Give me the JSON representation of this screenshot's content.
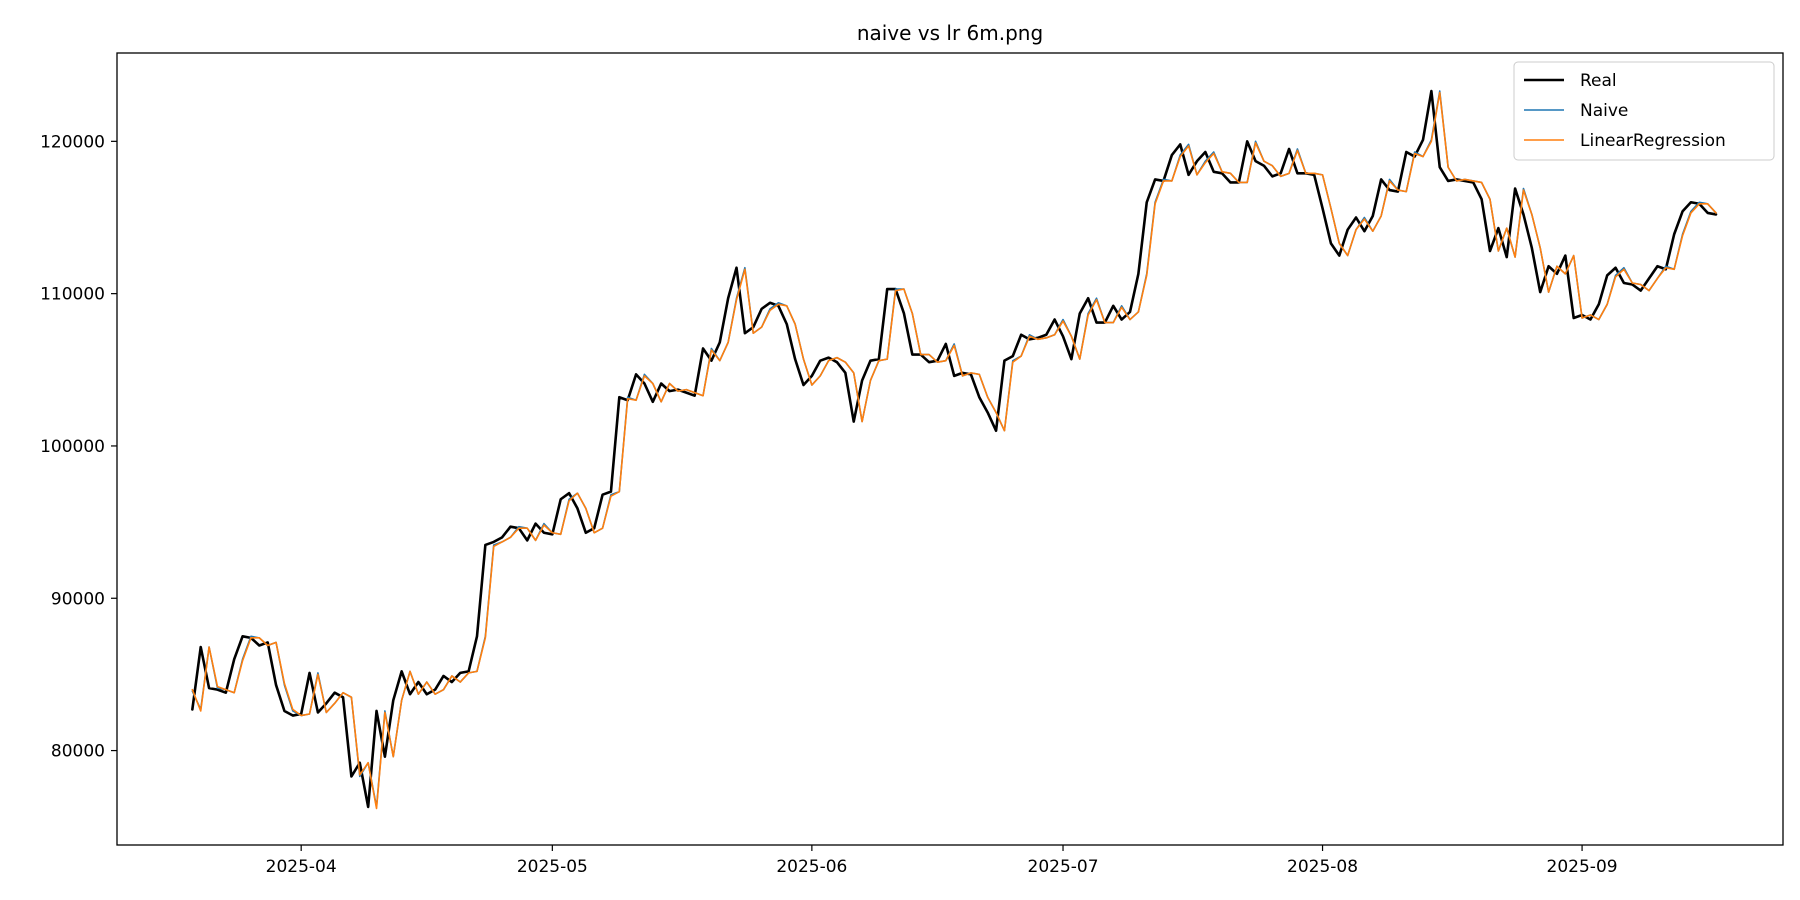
{
  "chart_data": {
    "type": "line",
    "title": "naive vs lr 6m.png",
    "xlabel": "",
    "ylabel": "",
    "x_start": "2025-03-19",
    "x_ticks": [
      "2025-04",
      "2025-05",
      "2025-06",
      "2025-07",
      "2025-08",
      "2025-09"
    ],
    "y_ticks": [
      80000,
      90000,
      100000,
      110000,
      120000
    ],
    "xlim": [
      "2025-03-10",
      "2025-09-25"
    ],
    "ylim": [
      73800,
      125800
    ],
    "grid": false,
    "legend_position": "top-right",
    "series": [
      {
        "name": "Real",
        "color": "#000000",
        "values": [
          82700,
          86800,
          84100,
          84000,
          83800,
          86000,
          87500,
          87400,
          86900,
          87100,
          84300,
          82600,
          82300,
          82400,
          85100,
          82500,
          83100,
          83800,
          83500,
          78300,
          79200,
          76300,
          82600,
          79600,
          83300,
          85200,
          83700,
          84500,
          83700,
          84000,
          84900,
          84500,
          85100,
          85200,
          87500,
          93500,
          93700,
          94000,
          94700,
          94600,
          93800,
          94900,
          94300,
          94200,
          96500,
          96900,
          95900,
          94300,
          94600,
          96800,
          97000,
          103200,
          103000,
          104700,
          104100,
          102900,
          104100,
          103600,
          103700,
          103500,
          103300,
          106400,
          105600,
          106800,
          109700,
          111700,
          107400,
          107800,
          109000,
          109400,
          109200,
          108000,
          105700,
          104000,
          104600,
          105600,
          105800,
          105500,
          104800,
          101600,
          104300,
          105600,
          105700,
          110300,
          110300,
          108700,
          106000,
          106000,
          105500,
          105600,
          106700,
          104600,
          104800,
          104700,
          103200,
          102200,
          101000,
          105600,
          105900,
          107300,
          107000,
          107100,
          107300,
          108300,
          107200,
          105700,
          108700,
          109700,
          108100,
          108100,
          109200,
          108300,
          108800,
          111300,
          116000,
          117500,
          117400,
          119100,
          119800,
          117800,
          118700,
          119300,
          118000,
          117900,
          117300,
          117300,
          120000,
          118700,
          118400,
          117700,
          117900,
          119500,
          117900,
          117900,
          117800,
          115600,
          113300,
          112500,
          114200,
          115000,
          114100,
          115100,
          117500,
          116800,
          116700,
          119300,
          119000,
          120100,
          123300,
          118300,
          117400,
          117500,
          117400,
          117300,
          116200,
          112800,
          114300,
          112400,
          116900,
          115200,
          113000,
          110100,
          111800,
          111300,
          112500,
          108400,
          108600,
          108300,
          109300,
          111200,
          111700,
          110700,
          110600,
          110200,
          111000,
          111800,
          111600,
          113900,
          115400,
          116000,
          115900,
          115300,
          115200
        ]
      },
      {
        "name": "Naive",
        "color": "#1f77b4",
        "values": [
          83900,
          82700,
          86800,
          84100,
          84000,
          83800,
          86000,
          87500,
          87400,
          86900,
          87100,
          84300,
          82600,
          82300,
          82400,
          85100,
          82500,
          83100,
          83800,
          83500,
          78300,
          79200,
          76300,
          82600,
          79600,
          83300,
          85200,
          83700,
          84500,
          83700,
          84000,
          84900,
          84500,
          85100,
          85200,
          87500,
          93500,
          93700,
          94000,
          94700,
          94600,
          93800,
          94900,
          94300,
          94200,
          96500,
          96900,
          95900,
          94300,
          94600,
          96800,
          97000,
          103200,
          103000,
          104700,
          104100,
          102900,
          104100,
          103600,
          103700,
          103500,
          103300,
          106400,
          105600,
          106800,
          109700,
          111700,
          107400,
          107800,
          109000,
          109400,
          109200,
          108000,
          105700,
          104000,
          104600,
          105600,
          105800,
          105500,
          104800,
          101600,
          104300,
          105600,
          105700,
          110300,
          110300,
          108700,
          106000,
          106000,
          105500,
          105600,
          106700,
          104600,
          104800,
          104700,
          103200,
          102200,
          101000,
          105600,
          105900,
          107300,
          107000,
          107100,
          107300,
          108300,
          107200,
          105700,
          108700,
          109700,
          108100,
          108100,
          109200,
          108300,
          108800,
          111300,
          116000,
          117500,
          117400,
          119100,
          119800,
          117800,
          118700,
          119300,
          118000,
          117900,
          117300,
          117300,
          120000,
          118700,
          118400,
          117700,
          117900,
          119500,
          117900,
          117900,
          117800,
          115600,
          113300,
          112500,
          114200,
          115000,
          114100,
          115100,
          117500,
          116800,
          116700,
          119300,
          119000,
          120100,
          123300,
          118300,
          117400,
          117500,
          117400,
          117300,
          116200,
          112800,
          114300,
          112400,
          116900,
          115200,
          113000,
          110100,
          111800,
          111300,
          112500,
          108400,
          108600,
          108300,
          109300,
          111200,
          111700,
          110700,
          110600,
          110200,
          111000,
          111800,
          111600,
          113900,
          115400,
          116000,
          115900,
          115300
        ]
      },
      {
        "name": "LinearRegression",
        "color": "#ff7f0e",
        "values": [
          84000,
          82600,
          86800,
          84200,
          84000,
          83800,
          85900,
          87400,
          87400,
          86900,
          87100,
          84400,
          82700,
          82300,
          82400,
          85000,
          82500,
          83100,
          83800,
          83500,
          78400,
          79200,
          76200,
          82500,
          79600,
          83300,
          85200,
          83700,
          84500,
          83700,
          84000,
          84900,
          84500,
          85100,
          85200,
          87400,
          93400,
          93700,
          94000,
          94600,
          94600,
          93800,
          94800,
          94300,
          94200,
          96400,
          96900,
          95900,
          94300,
          94600,
          96700,
          97000,
          103100,
          103000,
          104600,
          104100,
          102900,
          104100,
          103600,
          103700,
          103500,
          103300,
          106300,
          105600,
          106800,
          109600,
          111600,
          107400,
          107800,
          108900,
          109300,
          109200,
          108000,
          105700,
          104000,
          104600,
          105600,
          105800,
          105500,
          104800,
          101600,
          104300,
          105600,
          105700,
          110200,
          110300,
          108700,
          106000,
          106000,
          105500,
          105600,
          106600,
          104600,
          104800,
          104700,
          103200,
          102200,
          101000,
          105500,
          105900,
          107200,
          107000,
          107100,
          107300,
          108200,
          107200,
          105700,
          108600,
          109600,
          108100,
          108100,
          109100,
          108300,
          108800,
          111200,
          115900,
          117400,
          117400,
          119000,
          119700,
          117800,
          118600,
          119200,
          118000,
          117900,
          117300,
          117300,
          119900,
          118700,
          118400,
          117700,
          117900,
          119400,
          117900,
          117900,
          117800,
          115600,
          113300,
          112500,
          114200,
          114900,
          114100,
          115100,
          117400,
          116800,
          116700,
          119200,
          119000,
          120000,
          123200,
          118300,
          117400,
          117500,
          117400,
          117300,
          116200,
          112800,
          114300,
          112400,
          116800,
          115200,
          113000,
          110100,
          111800,
          111300,
          112500,
          108400,
          108600,
          108300,
          109300,
          111100,
          111600,
          110700,
          110600,
          110200,
          111000,
          111700,
          111600,
          113800,
          115300,
          115900,
          115900,
          115300
        ]
      }
    ]
  }
}
